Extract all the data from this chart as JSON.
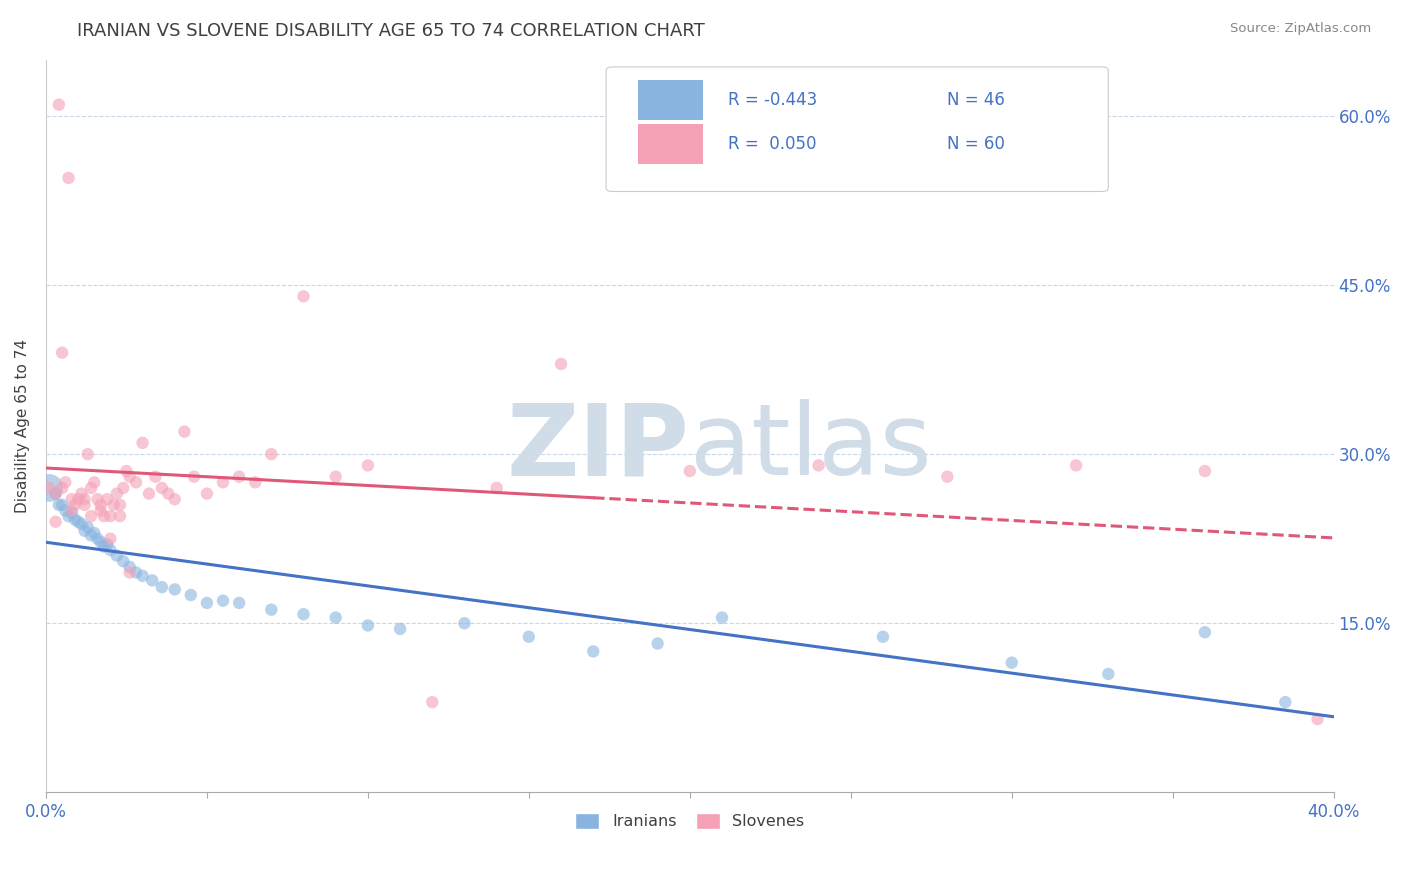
{
  "title": "IRANIAN VS SLOVENE DISABILITY AGE 65 TO 74 CORRELATION CHART",
  "source_text": "Source: ZipAtlas.com",
  "ylabel": "Disability Age 65 to 74",
  "xlim": [
    0.0,
    0.4
  ],
  "ylim": [
    0.0,
    0.65
  ],
  "x_ticks": [
    0.0,
    0.05,
    0.1,
    0.15,
    0.2,
    0.25,
    0.3,
    0.35,
    0.4
  ],
  "y_ticks_right": [
    0.15,
    0.3,
    0.45,
    0.6
  ],
  "y_tick_labels_right": [
    "15.0%",
    "30.0%",
    "45.0%",
    "60.0%"
  ],
  "iranian_color": "#8ab4e0",
  "slovene_color": "#f4a0b5",
  "iranian_line_color": "#4472c4",
  "slovene_line_color": "#e05878",
  "R_iranian": -0.443,
  "N_iranian": 46,
  "R_slovene": 0.05,
  "N_slovene": 60,
  "background_color": "#ffffff",
  "grid_color": "#c8d8e8",
  "watermark_color": "#d0dce8",
  "title_color": "#404040",
  "axis_label_color": "#4472c4",
  "legend_text_color": "#4472c4",
  "iranians_x": [
    0.001,
    0.003,
    0.004,
    0.005,
    0.006,
    0.007,
    0.008,
    0.009,
    0.01,
    0.011,
    0.012,
    0.013,
    0.014,
    0.015,
    0.016,
    0.017,
    0.018,
    0.019,
    0.02,
    0.022,
    0.024,
    0.026,
    0.028,
    0.03,
    0.033,
    0.036,
    0.04,
    0.045,
    0.05,
    0.055,
    0.06,
    0.07,
    0.08,
    0.09,
    0.1,
    0.11,
    0.13,
    0.15,
    0.17,
    0.19,
    0.21,
    0.26,
    0.3,
    0.33,
    0.36,
    0.385
  ],
  "iranians_y": [
    0.27,
    0.265,
    0.255,
    0.255,
    0.25,
    0.245,
    0.248,
    0.242,
    0.24,
    0.238,
    0.232,
    0.235,
    0.228,
    0.23,
    0.225,
    0.222,
    0.218,
    0.22,
    0.215,
    0.21,
    0.205,
    0.2,
    0.195,
    0.192,
    0.188,
    0.182,
    0.18,
    0.175,
    0.168,
    0.17,
    0.168,
    0.162,
    0.158,
    0.155,
    0.148,
    0.145,
    0.15,
    0.138,
    0.125,
    0.132,
    0.155,
    0.138,
    0.115,
    0.105,
    0.142,
    0.08
  ],
  "iranians_size": [
    400,
    80,
    80,
    80,
    80,
    80,
    80,
    80,
    80,
    80,
    80,
    80,
    80,
    80,
    80,
    80,
    80,
    80,
    80,
    80,
    80,
    80,
    80,
    80,
    80,
    80,
    80,
    80,
    80,
    80,
    80,
    80,
    80,
    80,
    80,
    80,
    80,
    80,
    80,
    80,
    80,
    80,
    80,
    80,
    80,
    80
  ],
  "slovenes_x": [
    0.001,
    0.003,
    0.004,
    0.005,
    0.006,
    0.007,
    0.008,
    0.009,
    0.01,
    0.011,
    0.012,
    0.013,
    0.014,
    0.015,
    0.016,
    0.017,
    0.018,
    0.019,
    0.02,
    0.021,
    0.022,
    0.023,
    0.024,
    0.025,
    0.026,
    0.028,
    0.03,
    0.032,
    0.034,
    0.036,
    0.038,
    0.04,
    0.043,
    0.046,
    0.05,
    0.055,
    0.06,
    0.065,
    0.07,
    0.08,
    0.09,
    0.1,
    0.12,
    0.14,
    0.16,
    0.2,
    0.24,
    0.28,
    0.32,
    0.36,
    0.003,
    0.005,
    0.008,
    0.012,
    0.014,
    0.017,
    0.02,
    0.023,
    0.026,
    0.395
  ],
  "slovenes_y": [
    0.27,
    0.265,
    0.61,
    0.27,
    0.275,
    0.545,
    0.26,
    0.255,
    0.26,
    0.265,
    0.255,
    0.3,
    0.27,
    0.275,
    0.26,
    0.25,
    0.245,
    0.26,
    0.245,
    0.255,
    0.265,
    0.255,
    0.27,
    0.285,
    0.28,
    0.275,
    0.31,
    0.265,
    0.28,
    0.27,
    0.265,
    0.26,
    0.32,
    0.28,
    0.265,
    0.275,
    0.28,
    0.275,
    0.3,
    0.44,
    0.28,
    0.29,
    0.08,
    0.27,
    0.38,
    0.285,
    0.29,
    0.28,
    0.29,
    0.285,
    0.24,
    0.39,
    0.25,
    0.26,
    0.245,
    0.255,
    0.225,
    0.245,
    0.195,
    0.065
  ]
}
